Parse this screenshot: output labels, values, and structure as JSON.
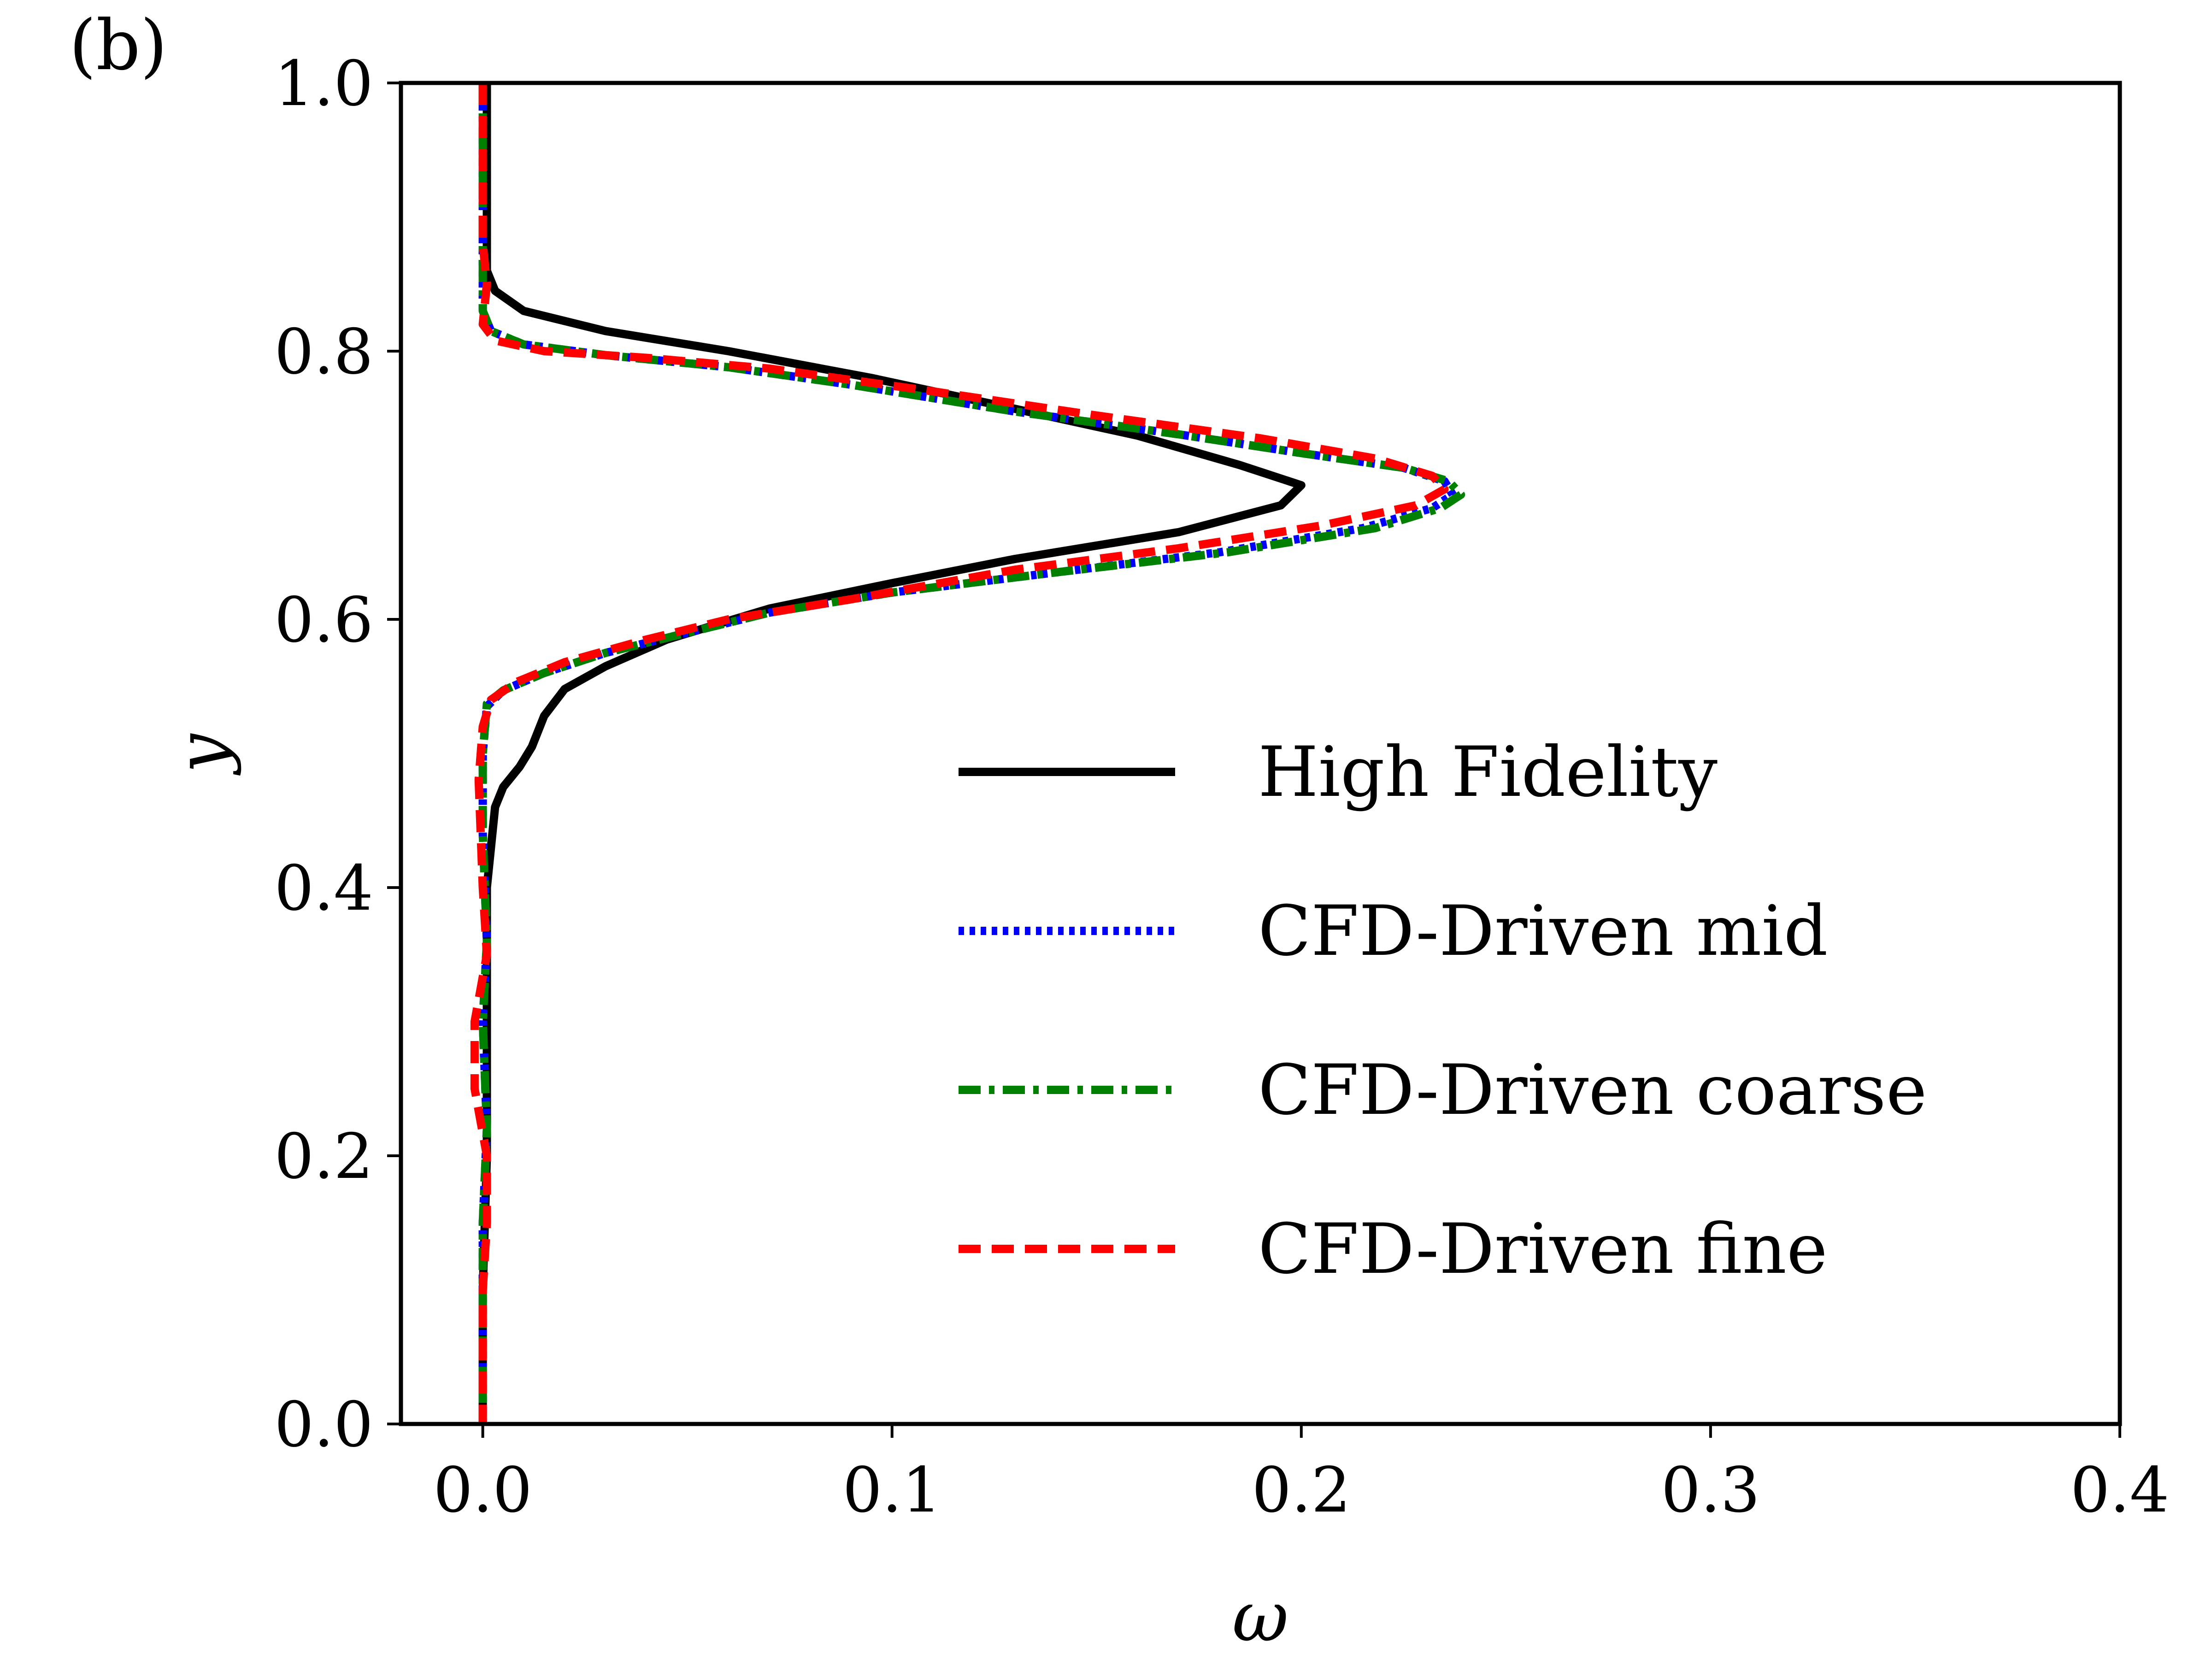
{
  "chart_data": {
    "type": "line",
    "panel_label": "(b)",
    "xlabel": "ω",
    "ylabel": "y",
    "xlim": [
      -0.02,
      0.4
    ],
    "ylim": [
      0.0,
      1.0
    ],
    "xticks": [
      0.0,
      0.1,
      0.2,
      0.3,
      0.4
    ],
    "yticks": [
      0.0,
      0.2,
      0.4,
      0.6,
      0.8,
      1.0
    ],
    "xtick_labels": [
      "0.0",
      "0.1",
      "0.2",
      "0.3",
      "0.4"
    ],
    "ytick_labels": [
      "0.0",
      "0.2",
      "0.4",
      "0.6",
      "0.8",
      "1.0"
    ],
    "legend_position": "center-right",
    "series": [
      {
        "name": "High Fidelity",
        "color": "#000000",
        "style": "solid",
        "points": [
          [
            0.001,
            1.0
          ],
          [
            0.001,
            0.9
          ],
          [
            0.001,
            0.86
          ],
          [
            0.003,
            0.845
          ],
          [
            0.01,
            0.83
          ],
          [
            0.03,
            0.815
          ],
          [
            0.06,
            0.8
          ],
          [
            0.095,
            0.78
          ],
          [
            0.13,
            0.757
          ],
          [
            0.16,
            0.737
          ],
          [
            0.185,
            0.715
          ],
          [
            0.2,
            0.7
          ],
          [
            0.195,
            0.685
          ],
          [
            0.17,
            0.665
          ],
          [
            0.13,
            0.645
          ],
          [
            0.1,
            0.627
          ],
          [
            0.07,
            0.608
          ],
          [
            0.045,
            0.585
          ],
          [
            0.03,
            0.565
          ],
          [
            0.02,
            0.548
          ],
          [
            0.015,
            0.528
          ],
          [
            0.012,
            0.505
          ],
          [
            0.009,
            0.49
          ],
          [
            0.005,
            0.475
          ],
          [
            0.003,
            0.46
          ],
          [
            0.002,
            0.43
          ],
          [
            0.001,
            0.4
          ],
          [
            0.001,
            0.3
          ],
          [
            0.001,
            0.2
          ],
          [
            0.0,
            0.1
          ],
          [
            0.0,
            0.0
          ]
        ]
      },
      {
        "name": "CFD-Driven mid",
        "color": "#0000ff",
        "style": "dotted",
        "points": [
          [
            0.0,
            1.0
          ],
          [
            0.0,
            0.88
          ],
          [
            0.0,
            0.83
          ],
          [
            0.002,
            0.815
          ],
          [
            0.01,
            0.805
          ],
          [
            0.03,
            0.797
          ],
          [
            0.06,
            0.788
          ],
          [
            0.09,
            0.775
          ],
          [
            0.13,
            0.755
          ],
          [
            0.17,
            0.738
          ],
          [
            0.2,
            0.724
          ],
          [
            0.225,
            0.713
          ],
          [
            0.235,
            0.703
          ],
          [
            0.237,
            0.693
          ],
          [
            0.232,
            0.683
          ],
          [
            0.215,
            0.668
          ],
          [
            0.18,
            0.65
          ],
          [
            0.14,
            0.635
          ],
          [
            0.1,
            0.62
          ],
          [
            0.07,
            0.605
          ],
          [
            0.05,
            0.59
          ],
          [
            0.03,
            0.575
          ],
          [
            0.015,
            0.56
          ],
          [
            0.005,
            0.547
          ],
          [
            0.001,
            0.535
          ],
          [
            0.0,
            0.5
          ],
          [
            0.0,
            0.44
          ],
          [
            0.001,
            0.36
          ],
          [
            0.0,
            0.3
          ],
          [
            0.001,
            0.22
          ],
          [
            0.0,
            0.15
          ],
          [
            0.0,
            0.0
          ]
        ]
      },
      {
        "name": "CFD-Driven coarse",
        "color": "#008000",
        "style": "dashdot",
        "points": [
          [
            0.0,
            1.0
          ],
          [
            0.0,
            0.88
          ],
          [
            0.0,
            0.83
          ],
          [
            0.002,
            0.815
          ],
          [
            0.01,
            0.805
          ],
          [
            0.03,
            0.797
          ],
          [
            0.06,
            0.788
          ],
          [
            0.09,
            0.775
          ],
          [
            0.13,
            0.755
          ],
          [
            0.17,
            0.738
          ],
          [
            0.2,
            0.724
          ],
          [
            0.225,
            0.713
          ],
          [
            0.236,
            0.703
          ],
          [
            0.239,
            0.693
          ],
          [
            0.234,
            0.683
          ],
          [
            0.218,
            0.668
          ],
          [
            0.182,
            0.65
          ],
          [
            0.14,
            0.635
          ],
          [
            0.1,
            0.62
          ],
          [
            0.07,
            0.605
          ],
          [
            0.05,
            0.59
          ],
          [
            0.03,
            0.575
          ],
          [
            0.015,
            0.56
          ],
          [
            0.005,
            0.547
          ],
          [
            0.001,
            0.537
          ],
          [
            0.0,
            0.5
          ],
          [
            0.0,
            0.44
          ],
          [
            0.001,
            0.36
          ],
          [
            0.0,
            0.3
          ],
          [
            0.001,
            0.22
          ],
          [
            0.0,
            0.15
          ],
          [
            0.0,
            0.0
          ]
        ]
      },
      {
        "name": "CFD-Driven fine",
        "color": "#ff0000",
        "style": "dashed",
        "points": [
          [
            0.0,
            1.0
          ],
          [
            0.0,
            0.88
          ],
          [
            0.001,
            0.85
          ],
          [
            0.0,
            0.82
          ],
          [
            0.003,
            0.808
          ],
          [
            0.015,
            0.8
          ],
          [
            0.04,
            0.795
          ],
          [
            0.07,
            0.787
          ],
          [
            0.11,
            0.77
          ],
          [
            0.15,
            0.752
          ],
          [
            0.19,
            0.735
          ],
          [
            0.218,
            0.72
          ],
          [
            0.232,
            0.707
          ],
          [
            0.235,
            0.697
          ],
          [
            0.228,
            0.685
          ],
          [
            0.205,
            0.67
          ],
          [
            0.17,
            0.653
          ],
          [
            0.13,
            0.637
          ],
          [
            0.09,
            0.615
          ],
          [
            0.06,
            0.6
          ],
          [
            0.04,
            0.585
          ],
          [
            0.02,
            0.568
          ],
          [
            0.008,
            0.553
          ],
          [
            0.002,
            0.54
          ],
          [
            0.0,
            0.52
          ],
          [
            -0.001,
            0.48
          ],
          [
            0.0,
            0.4
          ],
          [
            0.001,
            0.35
          ],
          [
            -0.002,
            0.3
          ],
          [
            -0.002,
            0.25
          ],
          [
            0.001,
            0.2
          ],
          [
            0.001,
            0.15
          ],
          [
            0.0,
            0.1
          ],
          [
            0.0,
            0.0
          ]
        ]
      }
    ]
  }
}
